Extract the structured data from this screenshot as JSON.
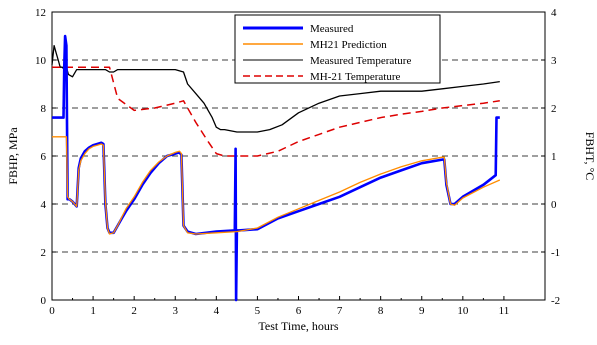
{
  "chart_data": {
    "type": "line",
    "xlabel": "Test Time, hours",
    "ylabel_left": "FBHP, MPa",
    "ylabel_right": "FBHT, °C",
    "xlim": [
      0,
      12
    ],
    "ylim_left": [
      0,
      12
    ],
    "ylim_right": [
      -2,
      4
    ],
    "x_ticks": [
      "0",
      "1",
      "2",
      "3",
      "4",
      "5",
      "6",
      "7",
      "8",
      "9",
      "10",
      "11"
    ],
    "y_left_ticks": [
      "0",
      "2",
      "4",
      "6",
      "8",
      "10",
      "12"
    ],
    "y_right_ticks": [
      "-2",
      "-1",
      "0",
      "1",
      "2",
      "3",
      "4"
    ],
    "grid": "dashed-horizontal",
    "legend_position": "top-center",
    "series": [
      {
        "name": "Measured",
        "axis": "left",
        "color": "#0000ff",
        "style": "solid-thick",
        "x": [
          0,
          0.28,
          0.3,
          0.32,
          0.35,
          0.38,
          0.42,
          0.5,
          0.55,
          0.6,
          0.65,
          0.7,
          0.8,
          0.9,
          1.0,
          1.1,
          1.2,
          1.25,
          1.3,
          1.35,
          1.4,
          1.5,
          1.6,
          1.7,
          1.8,
          2.0,
          2.2,
          2.4,
          2.6,
          2.8,
          3.0,
          3.1,
          3.15,
          3.2,
          3.3,
          3.5,
          4.0,
          4.45,
          4.47,
          4.48,
          4.5,
          4.52,
          4.55,
          5.0,
          5.5,
          6.0,
          6.5,
          7.0,
          7.5,
          8.0,
          8.5,
          9.0,
          9.5,
          9.55,
          9.6,
          9.7,
          9.8,
          10.0,
          10.5,
          10.8,
          10.82,
          10.85,
          10.9
        ],
        "y": [
          7.6,
          7.6,
          9.8,
          11.0,
          10.6,
          4.2,
          4.2,
          4.1,
          4.0,
          3.9,
          5.5,
          5.9,
          6.2,
          6.35,
          6.45,
          6.5,
          6.55,
          6.5,
          4.0,
          3.0,
          2.8,
          2.8,
          3.1,
          3.4,
          3.7,
          4.2,
          4.8,
          5.3,
          5.7,
          6.0,
          6.1,
          6.15,
          6.05,
          3.1,
          2.85,
          2.75,
          2.85,
          2.9,
          6.3,
          0.0,
          2.9,
          2.9,
          2.9,
          2.95,
          3.4,
          3.7,
          4.0,
          4.3,
          4.7,
          5.1,
          5.4,
          5.7,
          5.85,
          5.85,
          4.8,
          4.0,
          4.0,
          4.3,
          4.8,
          5.2,
          7.6,
          7.6,
          7.6
        ]
      },
      {
        "name": "MH21 Prediction",
        "axis": "left",
        "color": "#ff8c00",
        "style": "solid",
        "x": [
          0,
          0.35,
          0.38,
          0.42,
          0.5,
          0.55,
          0.6,
          0.65,
          0.7,
          0.8,
          0.9,
          1.0,
          1.1,
          1.2,
          1.25,
          1.3,
          1.35,
          1.4,
          1.5,
          1.6,
          1.7,
          1.8,
          2.0,
          2.2,
          2.4,
          2.6,
          2.8,
          3.0,
          3.1,
          3.15,
          3.2,
          3.3,
          3.5,
          4.0,
          4.5,
          5.0,
          5.5,
          6.0,
          6.5,
          7.0,
          7.5,
          8.0,
          8.5,
          9.0,
          9.5,
          9.55,
          9.6,
          9.7,
          9.8,
          10.0,
          10.5,
          10.9
        ],
        "y": [
          6.8,
          6.8,
          4.3,
          4.2,
          4.1,
          4.0,
          3.9,
          5.4,
          5.8,
          6.1,
          6.3,
          6.4,
          6.45,
          6.5,
          6.45,
          4.1,
          3.0,
          2.75,
          2.8,
          3.1,
          3.45,
          3.8,
          4.3,
          4.9,
          5.4,
          5.75,
          6.0,
          6.15,
          6.2,
          6.1,
          3.1,
          2.8,
          2.75,
          2.8,
          2.85,
          3.0,
          3.45,
          3.8,
          4.15,
          4.5,
          4.9,
          5.25,
          5.55,
          5.8,
          5.95,
          5.95,
          4.9,
          4.0,
          3.95,
          4.25,
          4.7,
          5.0
        ]
      },
      {
        "name": "Measured Temperature",
        "axis": "right",
        "color": "#000000",
        "style": "solid",
        "x": [
          0,
          0.05,
          0.1,
          0.15,
          0.2,
          0.25,
          0.3,
          0.35,
          0.4,
          0.5,
          0.6,
          0.8,
          1.0,
          1.3,
          1.4,
          1.5,
          1.6,
          2.0,
          2.5,
          3.0,
          3.2,
          3.3,
          3.5,
          3.7,
          3.9,
          4.0,
          4.1,
          4.2,
          4.5,
          5.0,
          5.3,
          5.6,
          6.0,
          6.5,
          7.0,
          7.5,
          8.0,
          8.5,
          9.0,
          9.5,
          10.0,
          10.5,
          10.9
        ],
        "y": [
          2.9,
          3.3,
          3.15,
          3.0,
          2.85,
          2.85,
          2.8,
          2.85,
          2.7,
          2.65,
          2.8,
          2.8,
          2.8,
          2.8,
          2.75,
          2.75,
          2.8,
          2.8,
          2.8,
          2.8,
          2.75,
          2.5,
          2.3,
          2.1,
          1.8,
          1.6,
          1.55,
          1.55,
          1.5,
          1.5,
          1.55,
          1.65,
          1.9,
          2.1,
          2.25,
          2.3,
          2.35,
          2.35,
          2.35,
          2.4,
          2.45,
          2.5,
          2.55
        ]
      },
      {
        "name": "MH-21 Temperature",
        "axis": "right",
        "color": "#dd0000",
        "style": "dashed",
        "x": [
          0,
          0.5,
          1.0,
          1.4,
          1.6,
          2.0,
          2.5,
          3.0,
          3.2,
          3.5,
          3.8,
          4.0,
          4.2,
          4.5,
          5.0,
          5.5,
          6.0,
          6.5,
          7.0,
          7.5,
          8.0,
          8.5,
          9.0,
          9.5,
          10.0,
          10.5,
          10.9
        ],
        "y": [
          2.85,
          2.85,
          2.85,
          2.85,
          2.2,
          1.95,
          2.0,
          2.1,
          2.15,
          1.7,
          1.3,
          1.05,
          1.0,
          1.0,
          1.0,
          1.1,
          1.3,
          1.45,
          1.6,
          1.7,
          1.8,
          1.87,
          1.93,
          2.0,
          2.05,
          2.1,
          2.15
        ]
      }
    ]
  }
}
